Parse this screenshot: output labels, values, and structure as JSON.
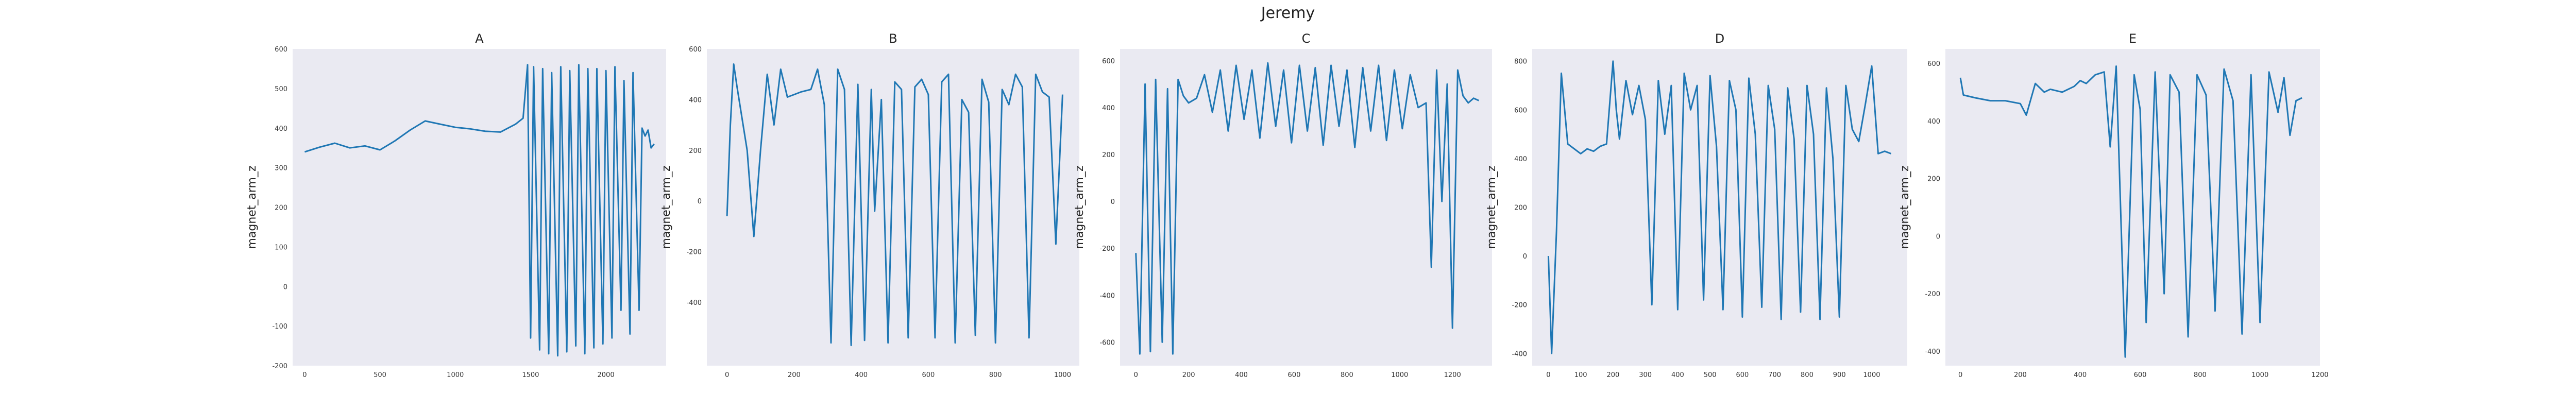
{
  "figure": {
    "title": "Jeremy"
  },
  "chart_data": [
    {
      "type": "line",
      "title": "A",
      "xlabel": "",
      "ylabel": "magnet_arm_z",
      "xlim": [
        -80,
        2400
      ],
      "ylim": [
        -200,
        600
      ],
      "xticks": [
        0,
        500,
        1000,
        1500,
        2000
      ],
      "yticks": [
        -200,
        -100,
        0,
        100,
        200,
        300,
        400,
        500,
        600
      ],
      "color": "#1f77b4",
      "grid": false,
      "x": [
        0,
        100,
        200,
        300,
        400,
        500,
        600,
        700,
        800,
        900,
        1000,
        1100,
        1200,
        1300,
        1400,
        1450,
        1480,
        1500,
        1520,
        1560,
        1580,
        1620,
        1640,
        1680,
        1700,
        1740,
        1760,
        1800,
        1820,
        1860,
        1880,
        1920,
        1940,
        1980,
        2000,
        2040,
        2060,
        2100,
        2120,
        2160,
        2180,
        2220,
        2240,
        2260,
        2280,
        2300,
        2320
      ],
      "values": [
        340,
        352,
        362,
        350,
        355,
        345,
        368,
        395,
        418,
        410,
        402,
        398,
        392,
        390,
        410,
        425,
        560,
        -130,
        555,
        -160,
        550,
        -170,
        540,
        -175,
        555,
        -165,
        545,
        -150,
        560,
        -170,
        550,
        -155,
        550,
        -145,
        545,
        -130,
        555,
        -60,
        520,
        -120,
        540,
        -60,
        400,
        380,
        395,
        350,
        360
      ]
    },
    {
      "type": "line",
      "title": "B",
      "xlabel": "",
      "ylabel": "magnet_arm_z",
      "xlim": [
        -60,
        1050
      ],
      "ylim": [
        -650,
        600
      ],
      "xticks": [
        0,
        200,
        400,
        600,
        800,
        1000
      ],
      "yticks": [
        -400,
        -200,
        0,
        200,
        400,
        600
      ],
      "color": "#1f77b4",
      "grid": false,
      "x": [
        0,
        10,
        20,
        30,
        60,
        80,
        100,
        120,
        140,
        160,
        180,
        200,
        220,
        250,
        270,
        290,
        310,
        330,
        350,
        370,
        390,
        410,
        430,
        440,
        460,
        480,
        500,
        520,
        540,
        560,
        580,
        600,
        620,
        640,
        660,
        680,
        700,
        720,
        740,
        760,
        780,
        800,
        820,
        840,
        860,
        880,
        900,
        920,
        940,
        960,
        980,
        1000
      ],
      "values": [
        -60,
        300,
        540,
        450,
        200,
        -140,
        200,
        500,
        300,
        520,
        410,
        420,
        430,
        440,
        520,
        380,
        -560,
        520,
        440,
        -570,
        460,
        -550,
        440,
        -40,
        400,
        -560,
        470,
        440,
        -540,
        450,
        480,
        420,
        -540,
        470,
        500,
        -560,
        400,
        350,
        -530,
        480,
        390,
        -560,
        440,
        380,
        500,
        450,
        -540,
        500,
        430,
        410,
        -170,
        420
      ]
    },
    {
      "type": "line",
      "title": "C",
      "xlabel": "",
      "ylabel": "magnet_arm_z",
      "xlim": [
        -60,
        1350
      ],
      "ylim": [
        -700,
        650
      ],
      "xticks": [
        0,
        200,
        400,
        600,
        800,
        1000,
        1200
      ],
      "yticks": [
        -600,
        -400,
        -200,
        0,
        200,
        400,
        600
      ],
      "color": "#1f77b4",
      "grid": false,
      "x": [
        0,
        15,
        35,
        55,
        75,
        100,
        120,
        140,
        160,
        180,
        200,
        230,
        260,
        290,
        320,
        350,
        380,
        410,
        440,
        470,
        500,
        530,
        560,
        590,
        620,
        650,
        680,
        710,
        740,
        770,
        800,
        830,
        860,
        890,
        920,
        950,
        980,
        1010,
        1040,
        1070,
        1100,
        1120,
        1140,
        1160,
        1180,
        1200,
        1220,
        1240,
        1260,
        1280,
        1300
      ],
      "values": [
        -220,
        -650,
        500,
        -640,
        520,
        -600,
        480,
        -650,
        520,
        450,
        420,
        440,
        540,
        380,
        560,
        300,
        580,
        350,
        560,
        270,
        590,
        320,
        560,
        250,
        580,
        300,
        570,
        240,
        580,
        320,
        560,
        230,
        570,
        300,
        580,
        260,
        560,
        310,
        540,
        400,
        420,
        -280,
        560,
        0,
        500,
        -540,
        560,
        450,
        420,
        440,
        430
      ]
    },
    {
      "type": "line",
      "title": "D",
      "xlabel": "",
      "ylabel": "magnet_arm_z",
      "xlim": [
        -50,
        1110
      ],
      "ylim": [
        -450,
        850
      ],
      "xticks": [
        0,
        100,
        200,
        300,
        400,
        500,
        600,
        700,
        800,
        900,
        1000
      ],
      "yticks": [
        -400,
        -200,
        0,
        200,
        400,
        600,
        800
      ],
      "color": "#1f77b4",
      "grid": false,
      "x": [
        0,
        10,
        25,
        40,
        60,
        80,
        100,
        120,
        140,
        160,
        180,
        200,
        210,
        220,
        240,
        260,
        280,
        300,
        320,
        340,
        360,
        380,
        400,
        420,
        440,
        460,
        480,
        500,
        520,
        540,
        560,
        580,
        600,
        620,
        640,
        660,
        680,
        700,
        720,
        740,
        760,
        780,
        800,
        820,
        840,
        860,
        880,
        900,
        920,
        940,
        960,
        980,
        1000,
        1020,
        1040,
        1060
      ],
      "values": [
        0,
        -400,
        100,
        750,
        460,
        440,
        420,
        440,
        430,
        450,
        460,
        800,
        600,
        480,
        720,
        580,
        700,
        560,
        -200,
        720,
        500,
        700,
        -220,
        750,
        600,
        700,
        -180,
        740,
        450,
        -220,
        720,
        600,
        -250,
        730,
        500,
        -210,
        700,
        520,
        -260,
        690,
        480,
        -230,
        700,
        500,
        -260,
        690,
        400,
        -250,
        700,
        520,
        470,
        620,
        780,
        420,
        430,
        420
      ]
    },
    {
      "type": "line",
      "title": "E",
      "xlabel": "",
      "ylabel": "magnet_arm_z",
      "xlim": [
        -50,
        1200
      ],
      "ylim": [
        -450,
        650
      ],
      "xticks": [
        0,
        200,
        400,
        600,
        800,
        1000,
        1200
      ],
      "yticks": [
        -400,
        -200,
        0,
        200,
        400,
        600
      ],
      "color": "#1f77b4",
      "grid": false,
      "x": [
        0,
        10,
        50,
        100,
        150,
        200,
        220,
        250,
        280,
        300,
        340,
        380,
        400,
        420,
        450,
        480,
        500,
        520,
        550,
        580,
        600,
        620,
        650,
        680,
        700,
        730,
        760,
        790,
        820,
        850,
        880,
        910,
        940,
        970,
        1000,
        1030,
        1060,
        1080,
        1100,
        1120,
        1140
      ],
      "values": [
        550,
        490,
        480,
        470,
        470,
        460,
        420,
        530,
        500,
        510,
        500,
        520,
        540,
        530,
        560,
        570,
        310,
        590,
        -420,
        560,
        440,
        -300,
        570,
        -200,
        560,
        500,
        -350,
        560,
        490,
        -260,
        580,
        470,
        -340,
        560,
        -300,
        570,
        430,
        550,
        350,
        470,
        480
      ]
    }
  ]
}
